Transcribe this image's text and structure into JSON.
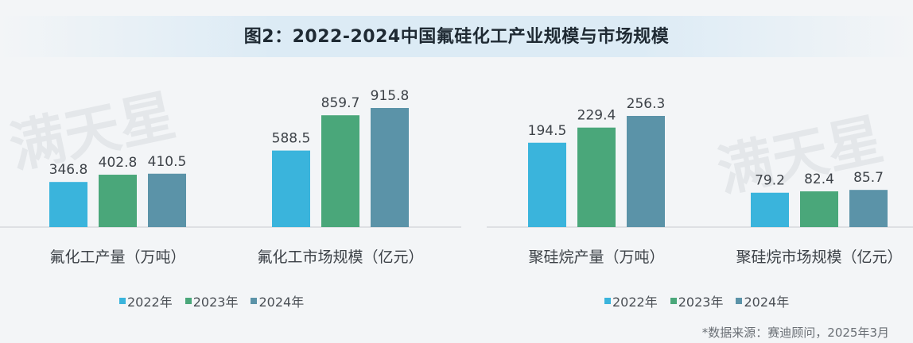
{
  "title": "图2：2022-2024中国氟硅化工产业规模与市场规模",
  "source": "*数据来源：赛迪顾问，2025年3月",
  "watermark": "满天星",
  "colors": {
    "2022年": "#3ab4dc",
    "2023年": "#4aa77a",
    "2024年": "#5b93a8"
  },
  "legend": [
    "2022年",
    "2023年",
    "2024年"
  ],
  "chart_data": [
    {
      "type": "bar",
      "panel": "left",
      "categories": [
        "氟化工产量（万吨）",
        "氟化工市场规模（亿元）"
      ],
      "series": [
        {
          "name": "2022年",
          "values": [
            346.8,
            588.5
          ]
        },
        {
          "name": "2023年",
          "values": [
            402.8,
            859.7
          ]
        },
        {
          "name": "2024年",
          "values": [
            410.5,
            915.8
          ]
        }
      ],
      "ylim": [
        0,
        1000
      ],
      "legend_position": "bottom"
    },
    {
      "type": "bar",
      "panel": "right",
      "categories": [
        "聚硅烷产量（万吨）",
        "聚硅烷市场规模（亿元）"
      ],
      "series": [
        {
          "name": "2022年",
          "values": [
            194.5,
            79.2
          ]
        },
        {
          "name": "2023年",
          "values": [
            229.4,
            82.4
          ]
        },
        {
          "name": "2024年",
          "values": [
            256.3,
            85.7
          ]
        }
      ],
      "ylim": [
        0,
        300
      ],
      "legend_position": "bottom"
    }
  ]
}
